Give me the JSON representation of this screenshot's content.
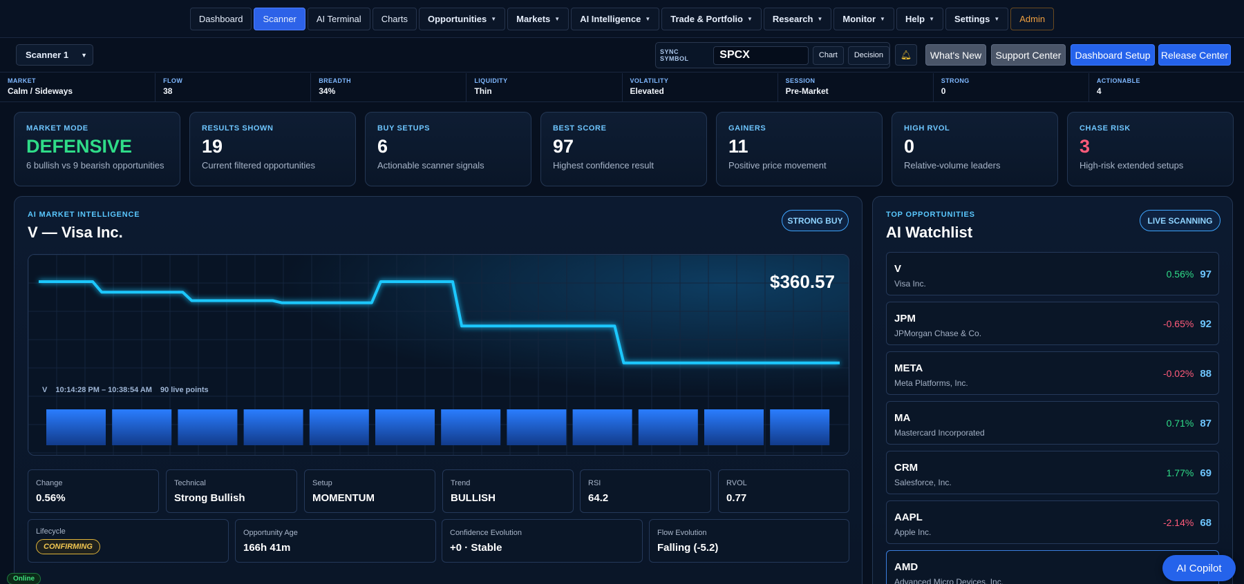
{
  "nav": [
    {
      "label": "Dashboard",
      "dropdown": false,
      "active": false
    },
    {
      "label": "Scanner",
      "dropdown": false,
      "active": true
    },
    {
      "label": "AI Terminal",
      "dropdown": false,
      "active": false
    },
    {
      "label": "Charts",
      "dropdown": false,
      "active": false
    },
    {
      "label": "Opportunities",
      "dropdown": true,
      "active": false
    },
    {
      "label": "Markets",
      "dropdown": true,
      "active": false
    },
    {
      "label": "AI Intelligence",
      "dropdown": true,
      "active": false
    },
    {
      "label": "Trade & Portfolio",
      "dropdown": true,
      "active": false
    },
    {
      "label": "Research",
      "dropdown": true,
      "active": false
    },
    {
      "label": "Monitor",
      "dropdown": true,
      "active": false
    },
    {
      "label": "Help",
      "dropdown": true,
      "active": false
    },
    {
      "label": "Settings",
      "dropdown": true,
      "active": false
    },
    {
      "label": "Admin",
      "dropdown": false,
      "active": false
    }
  ],
  "toolbar": {
    "scanner_select": "Scanner 1",
    "sync_label": "SYNC SYMBOL",
    "sync_value": "SPCX",
    "chart_btn": "Chart",
    "decision_btn": "Decision",
    "bell_icon": "bell-icon",
    "whats_new": "What's New",
    "support_center": "Support Center",
    "dashboard_setup": "Dashboard Setup",
    "release_center": "Release Center"
  },
  "strip": [
    {
      "label": "MARKET",
      "value": "Calm / Sideways"
    },
    {
      "label": "FLOW",
      "value": "38"
    },
    {
      "label": "BREADTH",
      "value": "34%"
    },
    {
      "label": "LIQUIDITY",
      "value": "Thin"
    },
    {
      "label": "VOLATILITY",
      "value": "Elevated"
    },
    {
      "label": "SESSION",
      "value": "Pre-Market"
    },
    {
      "label": "STRONG",
      "value": "0"
    },
    {
      "label": "ACTIONABLE",
      "value": "4"
    }
  ],
  "kpis": [
    {
      "label": "MARKET MODE",
      "value": "DEFENSIVE",
      "desc": "6 bullish vs 9 bearish opportunities",
      "color": "#2fdc88"
    },
    {
      "label": "RESULTS SHOWN",
      "value": "19",
      "desc": "Current filtered opportunities",
      "color": "#ffffff"
    },
    {
      "label": "BUY SETUPS",
      "value": "6",
      "desc": "Actionable scanner signals",
      "color": "#ffffff"
    },
    {
      "label": "BEST SCORE",
      "value": "97",
      "desc": "Highest confidence result",
      "color": "#ffffff"
    },
    {
      "label": "GAINERS",
      "value": "11",
      "desc": "Positive price movement",
      "color": "#ffffff"
    },
    {
      "label": "HIGH RVOL",
      "value": "0",
      "desc": "Relative-volume leaders",
      "color": "#ffffff"
    },
    {
      "label": "CHASE RISK",
      "value": "3",
      "desc": "High-risk extended setups",
      "color": "#ff5b7a"
    }
  ],
  "intel": {
    "kicker": "AI MARKET INTELLIGENCE",
    "title": "V — Visa Inc.",
    "badge": "STRONG BUY",
    "price": "$360.57",
    "caption_symbol": "V",
    "caption_range": "10:14:28 PM – 10:38:54 AM",
    "caption_points": "90 live points"
  },
  "chart_data": {
    "type": "line",
    "title": "",
    "line_color": "#1ec8ff",
    "bar_color": "#2a7dff",
    "x": [
      0,
      6,
      7,
      16,
      17,
      26,
      27,
      37,
      38,
      46,
      47,
      64,
      65,
      89
    ],
    "values": [
      1.0,
      1.0,
      0.9,
      0.9,
      0.82,
      0.82,
      0.8,
      0.8,
      1.0,
      1.0,
      0.58,
      0.58,
      0.23,
      0.23
    ],
    "volume_bars": 12
  },
  "metrics": [
    {
      "label": "Change",
      "value": "0.56%"
    },
    {
      "label": "Technical",
      "value": "Strong Bullish"
    },
    {
      "label": "Setup",
      "value": "MOMENTUM"
    },
    {
      "label": "Trend",
      "value": "BULLISH"
    },
    {
      "label": "RSI",
      "value": "64.2"
    },
    {
      "label": "RVOL",
      "value": "0.77"
    }
  ],
  "metrics2": [
    {
      "label": "Lifecycle",
      "value": "CONFIRMING"
    },
    {
      "label": "Opportunity Age",
      "value": "166h 41m"
    },
    {
      "label": "Confidence Evolution",
      "value": "+0 · Stable"
    },
    {
      "label": "Flow Evolution",
      "value": "Falling (-5.2)"
    }
  ],
  "watchlist": {
    "kicker": "TOP OPPORTUNITIES",
    "title": "AI Watchlist",
    "badge": "LIVE SCANNING",
    "items": [
      {
        "ticker": "V",
        "name": "Visa Inc.",
        "change": "0.56%",
        "score": "97",
        "dir": "up"
      },
      {
        "ticker": "JPM",
        "name": "JPMorgan Chase & Co.",
        "change": "-0.65%",
        "score": "92",
        "dir": "down"
      },
      {
        "ticker": "META",
        "name": "Meta Platforms, Inc.",
        "change": "-0.02%",
        "score": "88",
        "dir": "down"
      },
      {
        "ticker": "MA",
        "name": "Mastercard Incorporated",
        "change": "0.71%",
        "score": "87",
        "dir": "up"
      },
      {
        "ticker": "CRM",
        "name": "Salesforce, Inc.",
        "change": "1.77%",
        "score": "69",
        "dir": "up"
      },
      {
        "ticker": "AAPL",
        "name": "Apple Inc.",
        "change": "-2.14%",
        "score": "68",
        "dir": "down"
      },
      {
        "ticker": "AMD",
        "name": "Advanced Micro Devices, Inc.",
        "change": "",
        "score": "",
        "dir": "up"
      }
    ]
  },
  "status": {
    "online": "Online"
  },
  "copilot": {
    "label": "AI Copilot"
  }
}
